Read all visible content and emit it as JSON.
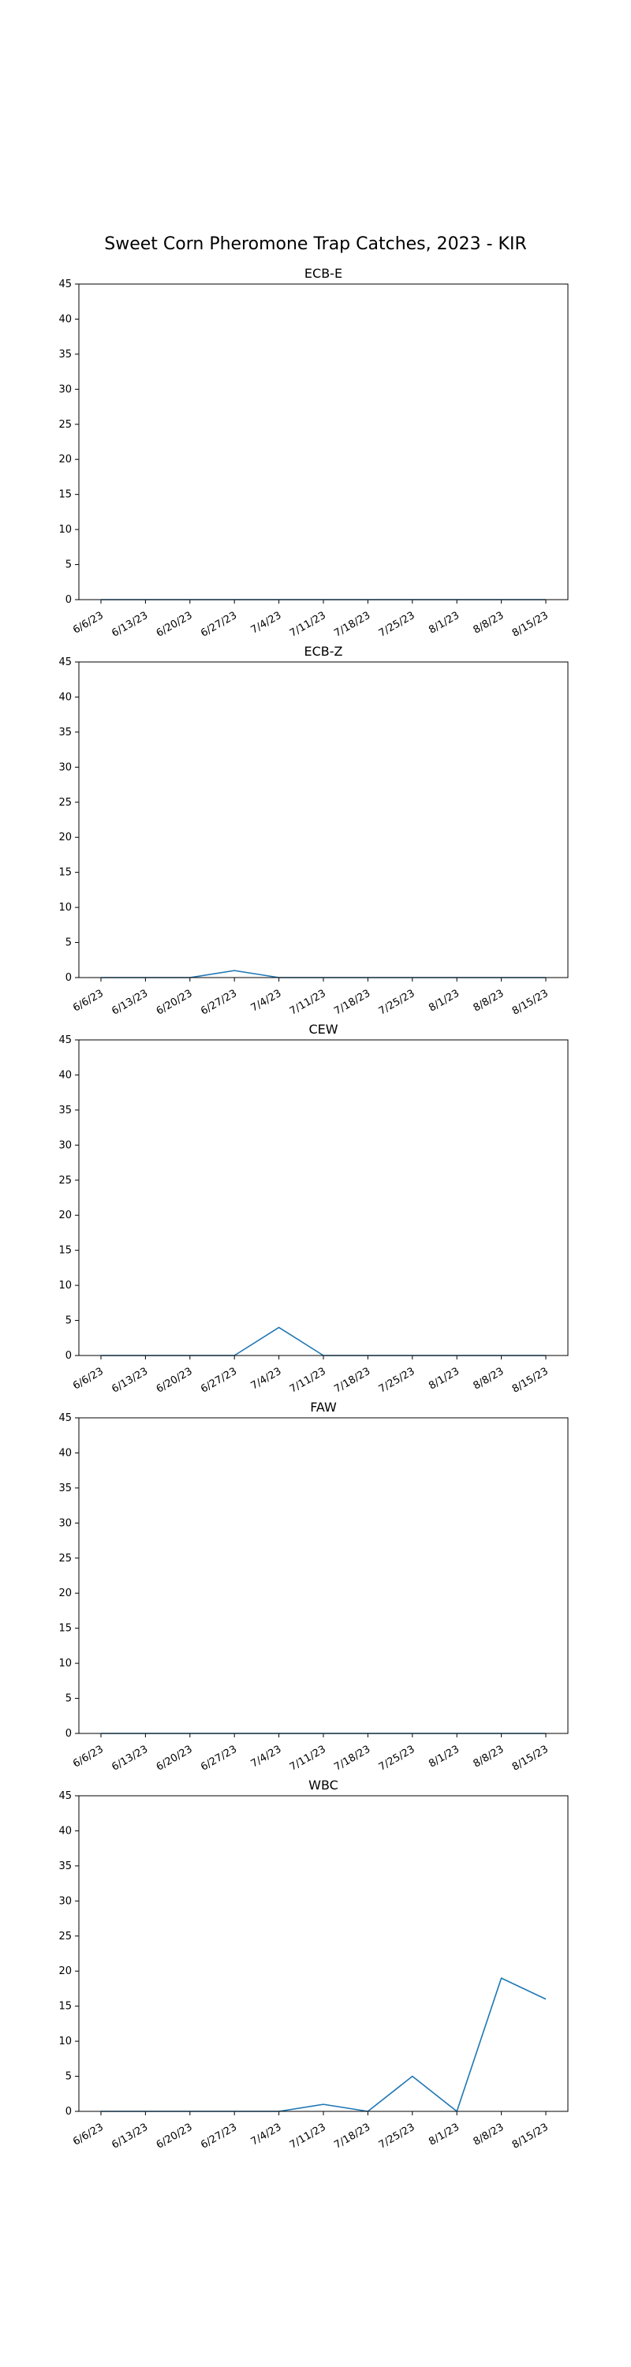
{
  "title": "Sweet Corn Pheromone Trap Catches, 2023 - KIR",
  "colors": {
    "line": "#1f77b4",
    "axes": "#000000"
  },
  "chart_data": [
    {
      "type": "line",
      "title": "ECB-E",
      "categories": [
        "6/6/23",
        "6/13/23",
        "6/20/23",
        "6/27/23",
        "7/4/23",
        "7/11/23",
        "7/18/23",
        "7/25/23",
        "8/1/23",
        "8/8/23",
        "8/15/23"
      ],
      "values": [
        0,
        0,
        0,
        0,
        0,
        0,
        0,
        0,
        0,
        0,
        0
      ],
      "yticks": [
        0,
        5,
        10,
        15,
        20,
        25,
        30,
        35,
        40,
        45
      ],
      "ylim": [
        0,
        45
      ],
      "xlabel": "",
      "ylabel": "",
      "grid": false
    },
    {
      "type": "line",
      "title": "ECB-Z",
      "categories": [
        "6/6/23",
        "6/13/23",
        "6/20/23",
        "6/27/23",
        "7/4/23",
        "7/11/23",
        "7/18/23",
        "7/25/23",
        "8/1/23",
        "8/8/23",
        "8/15/23"
      ],
      "values": [
        0,
        0,
        0,
        1,
        0,
        0,
        0,
        0,
        0,
        0,
        0
      ],
      "yticks": [
        0,
        5,
        10,
        15,
        20,
        25,
        30,
        35,
        40,
        45
      ],
      "ylim": [
        0,
        45
      ],
      "xlabel": "",
      "ylabel": "",
      "grid": false
    },
    {
      "type": "line",
      "title": "CEW",
      "categories": [
        "6/6/23",
        "6/13/23",
        "6/20/23",
        "6/27/23",
        "7/4/23",
        "7/11/23",
        "7/18/23",
        "7/25/23",
        "8/1/23",
        "8/8/23",
        "8/15/23"
      ],
      "values": [
        0,
        0,
        0,
        0,
        4,
        0,
        0,
        0,
        0,
        0,
        0
      ],
      "yticks": [
        0,
        5,
        10,
        15,
        20,
        25,
        30,
        35,
        40,
        45
      ],
      "ylim": [
        0,
        45
      ],
      "xlabel": "",
      "ylabel": "",
      "grid": false
    },
    {
      "type": "line",
      "title": "FAW",
      "categories": [
        "6/6/23",
        "6/13/23",
        "6/20/23",
        "6/27/23",
        "7/4/23",
        "7/11/23",
        "7/18/23",
        "7/25/23",
        "8/1/23",
        "8/8/23",
        "8/15/23"
      ],
      "values": [
        0,
        0,
        0,
        0,
        0,
        0,
        0,
        0,
        0,
        0,
        0
      ],
      "yticks": [
        0,
        5,
        10,
        15,
        20,
        25,
        30,
        35,
        40,
        45
      ],
      "ylim": [
        0,
        45
      ],
      "xlabel": "",
      "ylabel": "",
      "grid": false
    },
    {
      "type": "line",
      "title": "WBC",
      "categories": [
        "6/6/23",
        "6/13/23",
        "6/20/23",
        "6/27/23",
        "7/4/23",
        "7/11/23",
        "7/18/23",
        "7/25/23",
        "8/1/23",
        "8/8/23",
        "8/15/23"
      ],
      "values": [
        0,
        0,
        0,
        0,
        0,
        1,
        0,
        5,
        0,
        19,
        16
      ],
      "yticks": [
        0,
        5,
        10,
        15,
        20,
        25,
        30,
        35,
        40,
        45
      ],
      "ylim": [
        0,
        45
      ],
      "xlabel": "",
      "ylabel": "",
      "grid": false
    }
  ]
}
